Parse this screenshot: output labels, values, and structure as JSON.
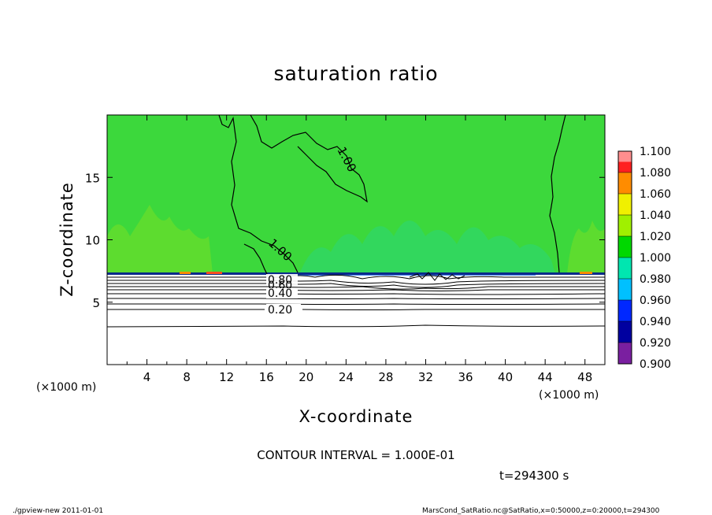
{
  "chart_data": {
    "type": "heatmap",
    "title": "saturation ratio",
    "xlabel": "X-coordinate",
    "ylabel": "Z-coordinate",
    "x_unit_label": "(×1000 m)",
    "y_unit_label": "(×1000 m)",
    "xlim": [
      0,
      50
    ],
    "ylim": [
      0,
      20
    ],
    "x_ticks": [
      4,
      8,
      12,
      16,
      20,
      24,
      28,
      32,
      36,
      40,
      44,
      48
    ],
    "x_tick_labels": [
      "4",
      "8",
      "12",
      "16",
      "20",
      "24",
      "28",
      "32",
      "36",
      "40",
      "44",
      "48"
    ],
    "y_ticks": [
      5,
      10,
      15
    ],
    "y_tick_labels": [
      "5",
      "10",
      "15"
    ],
    "colorbar": {
      "levels": [
        0.9,
        0.92,
        0.94,
        0.96,
        0.98,
        1.0,
        1.02,
        1.04,
        1.06,
        1.08,
        1.1
      ],
      "labels": [
        "0.900",
        "0.920",
        "0.940",
        "0.960",
        "0.980",
        "1.000",
        "1.020",
        "1.040",
        "1.060",
        "1.080",
        "1.100"
      ],
      "colors": [
        "#7a1fa0",
        "#0000a0",
        "#0028ff",
        "#00c0ff",
        "#00e6b0",
        "#00d800",
        "#a0f000",
        "#f0f000",
        "#ff8c00",
        "#ff2020",
        "#ff9a9a"
      ]
    },
    "contour_labels": [
      "1.00",
      "1.00",
      "0.80",
      "0.60",
      "0.40",
      "0.20"
    ],
    "contour_interval_text": "CONTOUR INTERVAL = 1.000E-01",
    "time_text": "t=294300 s",
    "field_background": "#3cd83c",
    "interface_z": 7.3
  },
  "footer": {
    "left": "./gpview-new   2011-01-01",
    "right": "MarsCond_SatRatio.nc@SatRatio,x=0:50000,z=0:20000,t=294300"
  }
}
